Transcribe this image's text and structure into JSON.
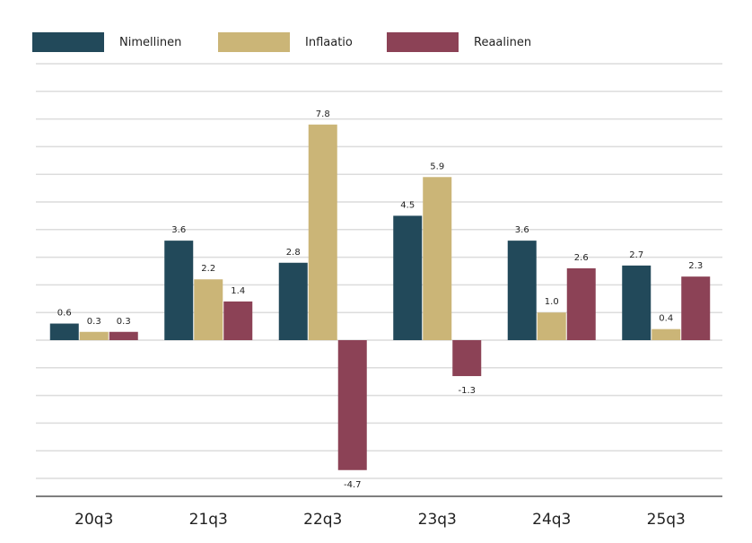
{
  "chart_data": {
    "type": "bar",
    "categories": [
      "20q3",
      "21q3",
      "22q3",
      "23q3",
      "24q3",
      "25q3"
    ],
    "series": [
      {
        "name": "Nimellinen",
        "color": "#22495a",
        "values": [
          0.6,
          3.6,
          2.8,
          4.5,
          3.6,
          2.7
        ]
      },
      {
        "name": "Inflaatio",
        "color": "#cbb577",
        "values": [
          0.3,
          2.2,
          7.8,
          5.9,
          1.0,
          0.4
        ]
      },
      {
        "name": "Reaalinen",
        "color": "#8c4256",
        "values": [
          0.3,
          1.4,
          -4.7,
          -1.3,
          2.6,
          2.3
        ]
      }
    ],
    "ylim": [
      -5.7,
      10
    ],
    "grid": true,
    "grid_step": 1,
    "legend": "top",
    "title": "",
    "xlabel": "",
    "ylabel": ""
  }
}
